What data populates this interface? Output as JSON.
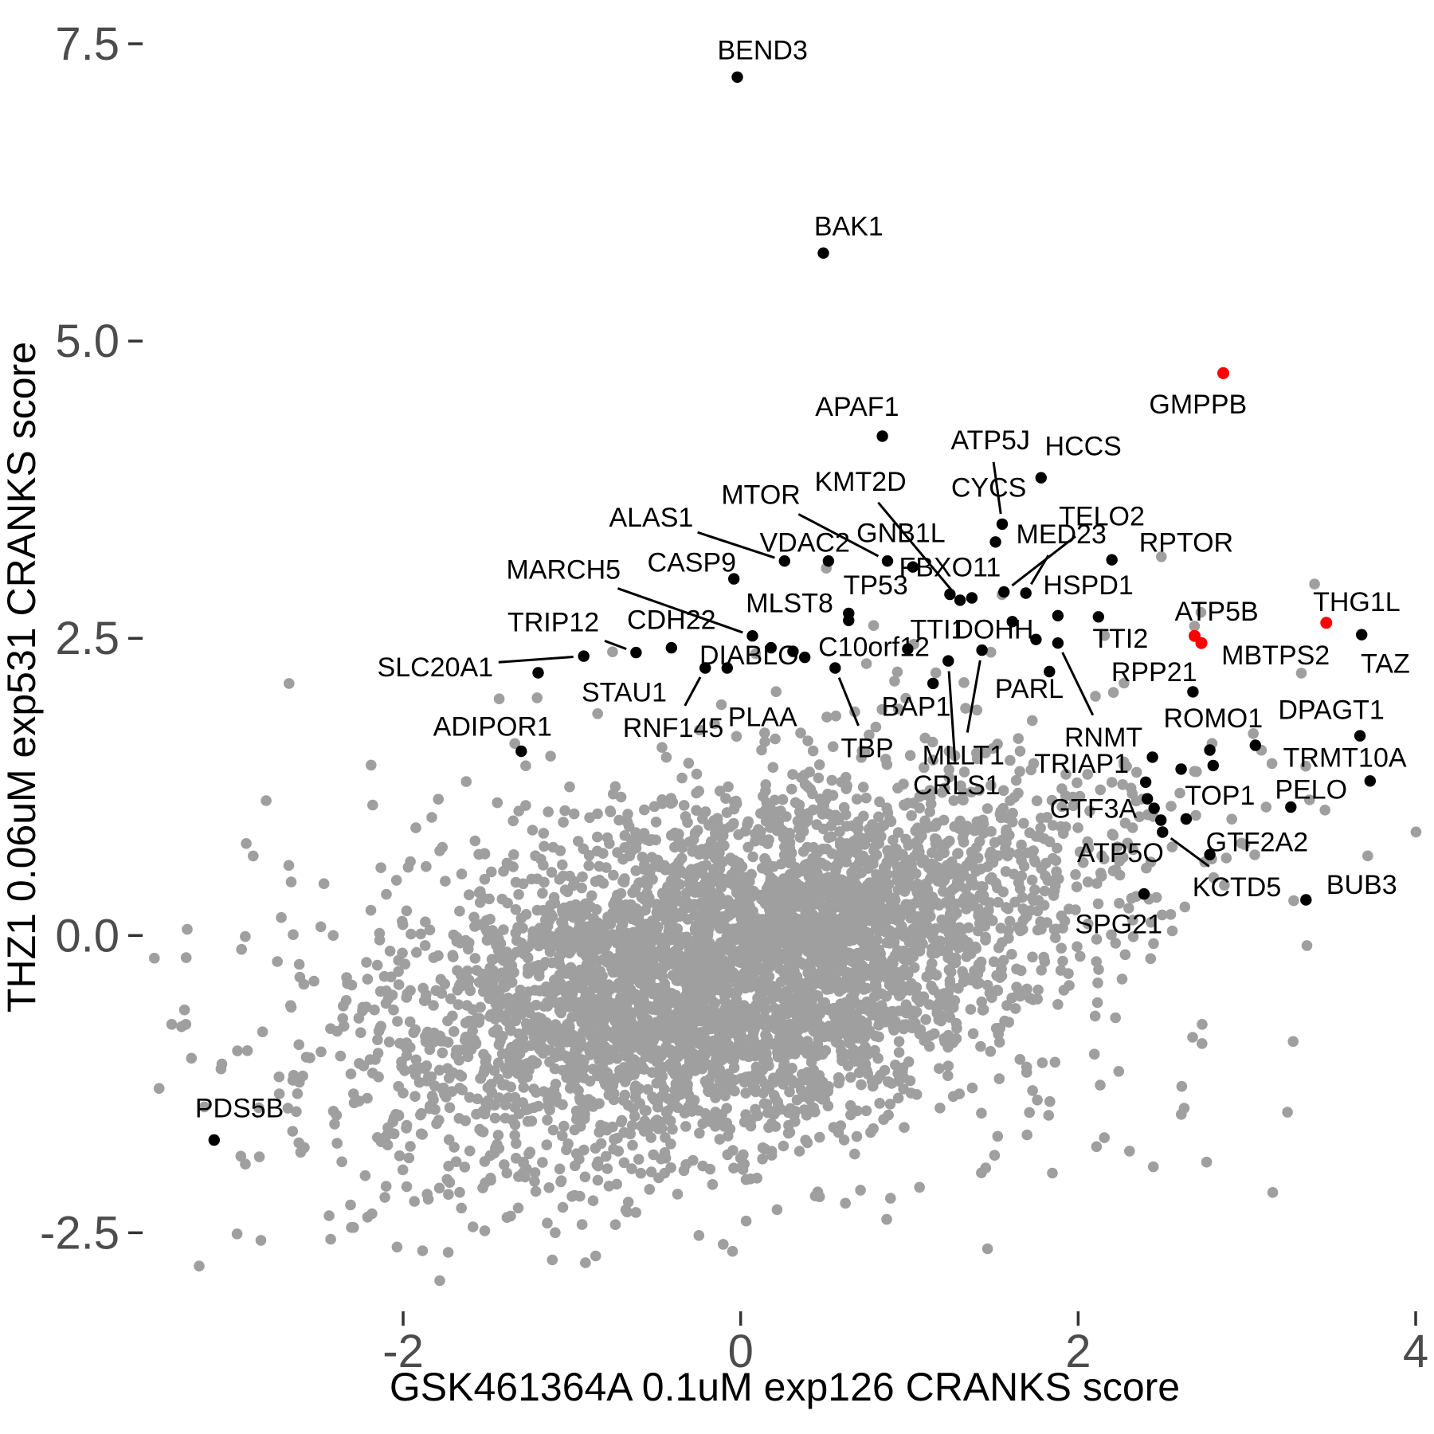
{
  "chart_data": {
    "type": "scatter",
    "title": "",
    "xlabel": "GSK461364A 0.1uM exp126 CRANKS score",
    "ylabel": "THZ1 0.06uM exp531 CRANKS score",
    "grid": false,
    "legend": "none",
    "xlim": [
      -3.55,
      4.1
    ],
    "ylim": [
      -3.15,
      7.75
    ],
    "x_ticks": [
      {
        "v": -2,
        "label": "-2"
      },
      {
        "v": 0,
        "label": "0"
      },
      {
        "v": 2,
        "label": "2"
      },
      {
        "v": 4,
        "label": "4"
      }
    ],
    "y_ticks": [
      {
        "v": 7.5,
        "label": "7.5"
      },
      {
        "v": 5.0,
        "label": "5.0"
      },
      {
        "v": 2.5,
        "label": "2.5"
      },
      {
        "v": 0.0,
        "label": "0.0"
      },
      {
        "v": -2.5,
        "label": "-2.5"
      }
    ],
    "colors": {
      "point_default": "#000000",
      "point_highlight": "#ff0000",
      "point_background": "#9f9f9f",
      "tick_label": "#4c4c4c",
      "tick_mark": "#333333",
      "axis_title": "#000000",
      "leader_line": "#000000"
    },
    "labeled_points": [
      {
        "gene": "BEND3",
        "x": -0.02,
        "y": 7.22,
        "color": "black",
        "lx": 0.13,
        "ly": 7.45,
        "leader": false
      },
      {
        "gene": "BAK1",
        "x": 0.49,
        "y": 5.74,
        "color": "black",
        "lx": 0.64,
        "ly": 5.97,
        "leader": false
      },
      {
        "gene": "GMPPB",
        "x": 2.86,
        "y": 4.73,
        "color": "red",
        "lx": 2.71,
        "ly": 4.47,
        "leader": false
      },
      {
        "gene": "APAF1",
        "x": 0.84,
        "y": 4.2,
        "color": "black",
        "lx": 0.69,
        "ly": 4.45,
        "leader": false
      },
      {
        "gene": "ATP5J",
        "x": 1.55,
        "y": 3.46,
        "color": "black",
        "lx": 1.48,
        "ly": 4.17,
        "leader": true
      },
      {
        "gene": "HCCS",
        "x": 1.78,
        "y": 3.85,
        "color": "black",
        "lx": 2.03,
        "ly": 4.12,
        "leader": false
      },
      {
        "gene": "CYCS",
        "x": 1.51,
        "y": 3.31,
        "color": "black",
        "lx": 1.47,
        "ly": 3.77,
        "leader": false
      },
      {
        "gene": "KMT2D",
        "x": 1.3,
        "y": 2.82,
        "color": "black",
        "lx": 0.71,
        "ly": 3.82,
        "leader": true
      },
      {
        "gene": "MTOR",
        "x": 0.87,
        "y": 3.15,
        "color": "black",
        "lx": 0.12,
        "ly": 3.71,
        "leader": true
      },
      {
        "gene": "ALAS1",
        "x": 0.26,
        "y": 3.15,
        "color": "black",
        "lx": -0.53,
        "ly": 3.52,
        "leader": true
      },
      {
        "gene": "VDAC2",
        "x": 0.52,
        "y": 3.15,
        "color": "black",
        "lx": 0.38,
        "ly": 3.31,
        "leader": false
      },
      {
        "gene": "GNB1L",
        "x": 1.02,
        "y": 3.1,
        "color": "black",
        "lx": 0.95,
        "ly": 3.39,
        "leader": false
      },
      {
        "gene": "TELO2",
        "x": 1.56,
        "y": 2.89,
        "color": "black",
        "lx": 2.14,
        "ly": 3.53,
        "leader": true
      },
      {
        "gene": "MED23",
        "x": 1.69,
        "y": 2.88,
        "color": "black",
        "lx": 1.9,
        "ly": 3.38,
        "leader": true
      },
      {
        "gene": "RPTOR",
        "x": 2.2,
        "y": 3.16,
        "color": "black",
        "lx": 2.64,
        "ly": 3.31,
        "leader": false
      },
      {
        "gene": "CASP9",
        "x": -0.04,
        "y": 3.0,
        "color": "black",
        "lx": -0.29,
        "ly": 3.14,
        "leader": false
      },
      {
        "gene": "FBXO11",
        "x": 1.24,
        "y": 2.87,
        "color": "black",
        "lx": 1.24,
        "ly": 3.1,
        "leader": false
      },
      {
        "gene": "HSPD1",
        "x": 1.88,
        "y": 2.69,
        "color": "black",
        "lx": 2.06,
        "ly": 2.95,
        "leader": false
      },
      {
        "gene": "TP53",
        "x": 0.64,
        "y": 2.71,
        "color": "black",
        "lx": 0.8,
        "ly": 2.95,
        "leader": false
      },
      {
        "gene": "MLST8",
        "x": 0.18,
        "y": 2.42,
        "color": "black",
        "lx": 0.29,
        "ly": 2.8,
        "leader": false
      },
      {
        "gene": "MARCH5",
        "x": 0.07,
        "y": 2.52,
        "color": "black",
        "lx": -1.05,
        "ly": 3.08,
        "leader": true
      },
      {
        "gene": "CDH22",
        "x": -0.41,
        "y": 2.42,
        "color": "black",
        "lx": -0.41,
        "ly": 2.66,
        "leader": false
      },
      {
        "gene": "TRIP12",
        "x": -0.62,
        "y": 2.38,
        "color": "black",
        "lx": -1.11,
        "ly": 2.64,
        "leader": true
      },
      {
        "gene": "SLC20A1",
        "x": -0.93,
        "y": 2.35,
        "color": "black",
        "lx": -1.81,
        "ly": 2.26,
        "leader": true
      },
      {
        "gene": "STAU1",
        "x": -1.2,
        "y": 2.21,
        "color": "black",
        "lx": -0.69,
        "ly": 2.05,
        "leader": false
      },
      {
        "gene": "ADIPOR1",
        "x": -1.3,
        "y": 1.55,
        "color": "black",
        "lx": -1.47,
        "ly": 1.76,
        "leader": false
      },
      {
        "gene": "TTI1",
        "x": 1.61,
        "y": 2.64,
        "color": "black",
        "lx": 1.17,
        "ly": 2.58,
        "leader": false
      },
      {
        "gene": "DOHH",
        "x": 1.75,
        "y": 2.49,
        "color": "black",
        "lx": 1.5,
        "ly": 2.58,
        "leader": false
      },
      {
        "gene": "TTI2",
        "x": 2.12,
        "y": 2.68,
        "color": "black",
        "lx": 2.25,
        "ly": 2.5,
        "leader": false
      },
      {
        "gene": "ATP5B",
        "x": 2.69,
        "y": 2.52,
        "color": "red",
        "lx": 2.82,
        "ly": 2.73,
        "leader": false
      },
      {
        "gene": "MBTPS2",
        "x": 2.73,
        "y": 2.46,
        "color": "red",
        "lx": 3.17,
        "ly": 2.36,
        "leader": false
      },
      {
        "gene": "THG1L",
        "x": 3.47,
        "y": 2.63,
        "color": "red",
        "lx": 3.65,
        "ly": 2.81,
        "leader": false
      },
      {
        "gene": "TAZ",
        "x": 3.68,
        "y": 2.53,
        "color": "black",
        "lx": 3.82,
        "ly": 2.29,
        "leader": false
      },
      {
        "gene": "RPP21",
        "x": 2.68,
        "y": 2.05,
        "color": "black",
        "lx": 2.45,
        "ly": 2.22,
        "leader": false
      },
      {
        "gene": "DIABLO",
        "x": -0.08,
        "y": 2.25,
        "color": "black",
        "lx": 0.05,
        "ly": 2.36,
        "leader": false
      },
      {
        "gene": "C10orf12",
        "x": 0.99,
        "y": 2.41,
        "color": "black",
        "lx": 0.79,
        "ly": 2.43,
        "leader": false
      },
      {
        "gene": "RNF145",
        "x": -0.21,
        "y": 2.25,
        "color": "black",
        "lx": -0.4,
        "ly": 1.75,
        "leader": true
      },
      {
        "gene": "PLAA",
        "x": 0.31,
        "y": 2.39,
        "color": "black",
        "lx": 0.13,
        "ly": 1.84,
        "leader": false
      },
      {
        "gene": "BAP1",
        "x": 1.14,
        "y": 2.12,
        "color": "black",
        "lx": 1.04,
        "ly": 1.93,
        "leader": false
      },
      {
        "gene": "PARL",
        "x": 1.83,
        "y": 2.22,
        "color": "black",
        "lx": 1.71,
        "ly": 2.08,
        "leader": false
      },
      {
        "gene": "TBP",
        "x": 0.56,
        "y": 2.25,
        "color": "black",
        "lx": 0.75,
        "ly": 1.58,
        "leader": true
      },
      {
        "gene": "MLLT1",
        "x": 1.43,
        "y": 2.4,
        "color": "black",
        "lx": 1.32,
        "ly": 1.52,
        "leader": true
      },
      {
        "gene": "CRLS1",
        "x": 1.23,
        "y": 2.31,
        "color": "black",
        "lx": 1.28,
        "ly": 1.27,
        "leader": true
      },
      {
        "gene": "RNMT",
        "x": 1.88,
        "y": 2.46,
        "color": "black",
        "lx": 2.15,
        "ly": 1.67,
        "leader": true
      },
      {
        "gene": "TRIAP1",
        "x": 2.44,
        "y": 1.5,
        "color": "black",
        "lx": 2.02,
        "ly": 1.45,
        "leader": false
      },
      {
        "gene": "ROMO1",
        "x": 3.05,
        "y": 1.6,
        "color": "black",
        "lx": 2.8,
        "ly": 1.83,
        "leader": false
      },
      {
        "gene": "DPAGT1",
        "x": 3.67,
        "y": 1.68,
        "color": "black",
        "lx": 3.5,
        "ly": 1.9,
        "leader": false
      },
      {
        "gene": "TRMT10A",
        "x": 3.73,
        "y": 1.3,
        "color": "black",
        "lx": 3.58,
        "ly": 1.5,
        "leader": false
      },
      {
        "gene": "PELO",
        "x": 3.26,
        "y": 1.08,
        "color": "black",
        "lx": 3.38,
        "ly": 1.23,
        "leader": false
      },
      {
        "gene": "TOP1",
        "x": 2.64,
        "y": 0.98,
        "color": "black",
        "lx": 2.84,
        "ly": 1.18,
        "leader": false
      },
      {
        "gene": "GTF3A",
        "x": 2.45,
        "y": 1.07,
        "color": "black",
        "lx": 2.09,
        "ly": 1.07,
        "leader": false
      },
      {
        "gene": "GTF2A2",
        "x": 2.78,
        "y": 0.68,
        "color": "black",
        "lx": 3.06,
        "ly": 0.79,
        "leader": false
      },
      {
        "gene": "ATP5O",
        "x": 2.49,
        "y": 0.97,
        "color": "black",
        "lx": 2.25,
        "ly": 0.7,
        "leader": false
      },
      {
        "gene": "KCTD5",
        "x": 2.5,
        "y": 0.87,
        "color": "black",
        "lx": 2.94,
        "ly": 0.41,
        "leader": true
      },
      {
        "gene": "SPG21",
        "x": 2.39,
        "y": 0.35,
        "color": "black",
        "lx": 2.24,
        "ly": 0.1,
        "leader": false
      },
      {
        "gene": "BUB3",
        "x": 3.35,
        "y": 0.3,
        "color": "black",
        "lx": 3.68,
        "ly": 0.43,
        "leader": false
      },
      {
        "gene": "PDS5B",
        "x": -3.12,
        "y": -1.72,
        "color": "black",
        "lx": -2.97,
        "ly": -1.45,
        "leader": false
      }
    ],
    "extra_black_points": [
      {
        "x": 1.37,
        "y": 2.84
      },
      {
        "x": 0.64,
        "y": 2.65
      },
      {
        "x": 0.38,
        "y": 2.34
      },
      {
        "x": 2.4,
        "y": 1.29
      },
      {
        "x": 2.61,
        "y": 1.4
      },
      {
        "x": 2.41,
        "y": 1.15
      },
      {
        "x": 2.78,
        "y": 1.56
      },
      {
        "x": 2.8,
        "y": 1.43
      }
    ],
    "background_cloud": {
      "description": "dense unlabeled screen hits",
      "color": "#9f9f9f",
      "seed": 1337,
      "main": {
        "n": 4000,
        "mean": [
          -0.05,
          -0.3
        ],
        "sd": [
          0.98,
          0.75
        ],
        "corr": 0.42
      },
      "halo": {
        "n": 560,
        "mean": [
          0.1,
          -0.2
        ],
        "sd": [
          1.75,
          1.15
        ],
        "corr": 0.35
      }
    }
  }
}
